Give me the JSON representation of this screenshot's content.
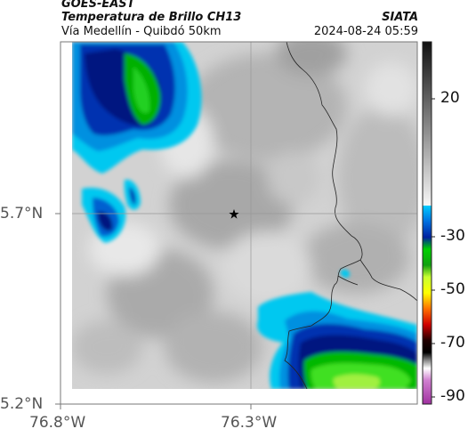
{
  "header": {
    "satellite": "GOES-EAST",
    "product": "Temperatura de Brillo CH13",
    "route": "Vía Medellín - Quibdó 50km",
    "agency": "SIATA",
    "datetime": "2024-08-24 05:59"
  },
  "map": {
    "lat_ticks": [
      "5.7°N",
      "5.2°N"
    ],
    "lon_ticks": [
      "76.8°W",
      "76.3°W"
    ],
    "marker": "star-marker"
  },
  "colorbar": {
    "ticks": [
      "20",
      "-30",
      "-50",
      "-70",
      "-90"
    ],
    "colors": {
      "gray_top": "#1a1a1a",
      "gray_bottom": "#f4f4f4",
      "cyan": "#00c8ff",
      "blue": "#0040d0",
      "navy": "#001070",
      "green": "#00c000",
      "lime": "#b0ff30",
      "yellow": "#ffff00",
      "orange": "#ff8000",
      "red": "#d00000",
      "black": "#000000",
      "magenta": "#c040c0"
    }
  }
}
